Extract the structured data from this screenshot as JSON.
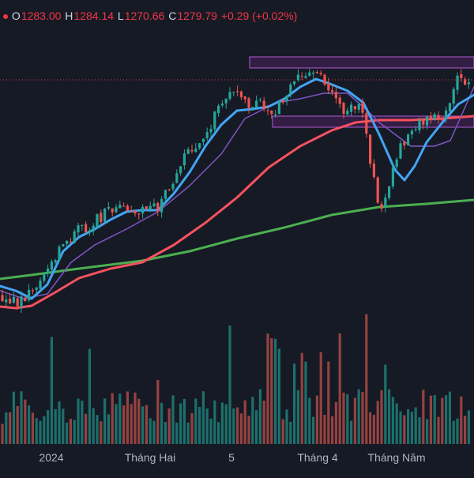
{
  "header": {
    "open_label": "O",
    "open_value": "1283.00",
    "high_label": "H",
    "high_value": "1284.14",
    "low_label": "L",
    "low_value": "1270.66",
    "close_label": "C",
    "close_value": "1279.79",
    "change": "+0.29 (+0.02%)"
  },
  "colors": {
    "background": "#161a25",
    "up": "#26a69a",
    "down": "#ef5350",
    "ma_fast": "#42a5f5",
    "ma_mid": "#7e57c2",
    "ma_slow": "#f7525f",
    "ma_long": "#4caf50",
    "zone": "#9c27b0"
  },
  "chart_data": {
    "type": "candlestick",
    "x_tick_labels": [
      "2024",
      "Tháng Hai",
      "5",
      "Tháng 4",
      "Tháng Năm"
    ],
    "grid": false,
    "legend": "none",
    "overlays": [
      "fast moving average (blue)",
      "medium moving average (purple)",
      "slow moving average (red)",
      "long moving average (green)",
      "two resistance zones (purple boxes)"
    ],
    "volume_panel": true,
    "notes": "Price and volume values are approximate reconstructions from the image; the vertical price axis is not visible."
  }
}
